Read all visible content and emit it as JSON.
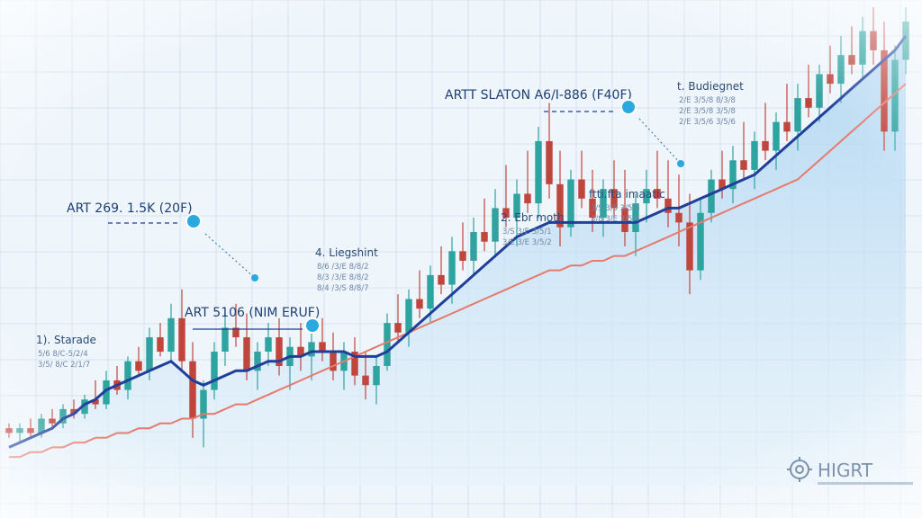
{
  "chart_data": {
    "type": "candlestick",
    "title": "",
    "xlabel": "",
    "ylabel": "",
    "grid": true,
    "legend": "none",
    "ylim": [
      0,
      100
    ],
    "candles": [
      [
        12,
        13,
        10,
        11
      ],
      [
        11,
        13,
        9,
        12
      ],
      [
        12,
        14,
        10,
        11
      ],
      [
        11,
        15,
        10,
        14
      ],
      [
        14,
        16,
        12,
        13
      ],
      [
        13,
        17,
        12,
        16
      ],
      [
        16,
        18,
        14,
        15
      ],
      [
        15,
        19,
        14,
        18
      ],
      [
        18,
        22,
        16,
        17
      ],
      [
        17,
        24,
        16,
        22
      ],
      [
        22,
        25,
        19,
        20
      ],
      [
        20,
        27,
        18,
        26
      ],
      [
        26,
        29,
        23,
        24
      ],
      [
        24,
        33,
        22,
        31
      ],
      [
        31,
        34,
        27,
        28
      ],
      [
        28,
        38,
        26,
        35
      ],
      [
        35,
        41,
        24,
        26
      ],
      [
        26,
        30,
        10,
        14
      ],
      [
        14,
        22,
        8,
        20
      ],
      [
        20,
        30,
        18,
        28
      ],
      [
        28,
        36,
        25,
        33
      ],
      [
        33,
        38,
        29,
        31
      ],
      [
        31,
        36,
        22,
        24
      ],
      [
        24,
        30,
        20,
        28
      ],
      [
        28,
        34,
        25,
        31
      ],
      [
        31,
        35,
        23,
        25
      ],
      [
        25,
        31,
        20,
        29
      ],
      [
        29,
        34,
        24,
        27
      ],
      [
        27,
        33,
        22,
        30
      ],
      [
        30,
        35,
        26,
        28
      ],
      [
        28,
        32,
        22,
        24
      ],
      [
        24,
        30,
        20,
        28
      ],
      [
        28,
        31,
        21,
        23
      ],
      [
        23,
        28,
        18,
        21
      ],
      [
        21,
        27,
        17,
        25
      ],
      [
        25,
        36,
        24,
        34
      ],
      [
        34,
        40,
        30,
        32
      ],
      [
        32,
        41,
        29,
        39
      ],
      [
        39,
        45,
        35,
        37
      ],
      [
        37,
        46,
        34,
        44
      ],
      [
        44,
        50,
        40,
        42
      ],
      [
        42,
        52,
        38,
        49
      ],
      [
        49,
        55,
        45,
        47
      ],
      [
        47,
        56,
        44,
        53
      ],
      [
        53,
        60,
        49,
        51
      ],
      [
        51,
        62,
        48,
        58
      ],
      [
        58,
        67,
        54,
        56
      ],
      [
        56,
        64,
        50,
        61
      ],
      [
        61,
        70,
        57,
        59
      ],
      [
        59,
        75,
        56,
        72
      ],
      [
        72,
        80,
        60,
        63
      ],
      [
        63,
        70,
        50,
        54
      ],
      [
        54,
        66,
        52,
        64
      ],
      [
        64,
        70,
        58,
        60
      ],
      [
        60,
        66,
        53,
        56
      ],
      [
        56,
        64,
        52,
        62
      ],
      [
        62,
        68,
        56,
        58
      ],
      [
        58,
        66,
        50,
        53
      ],
      [
        53,
        61,
        48,
        59
      ],
      [
        59,
        66,
        55,
        62
      ],
      [
        62,
        70,
        58,
        60
      ],
      [
        60,
        68,
        54,
        57
      ],
      [
        57,
        65,
        50,
        55
      ],
      [
        55,
        61,
        40,
        45
      ],
      [
        45,
        60,
        43,
        57
      ],
      [
        57,
        66,
        55,
        64
      ],
      [
        64,
        70,
        60,
        62
      ],
      [
        62,
        71,
        59,
        68
      ],
      [
        68,
        76,
        64,
        66
      ],
      [
        66,
        74,
        62,
        72
      ],
      [
        72,
        80,
        68,
        70
      ],
      [
        70,
        78,
        66,
        76
      ],
      [
        76,
        84,
        72,
        74
      ],
      [
        74,
        84,
        70,
        81
      ],
      [
        81,
        88,
        77,
        79
      ],
      [
        79,
        88,
        76,
        86
      ],
      [
        86,
        92,
        82,
        84
      ],
      [
        84,
        94,
        80,
        90
      ],
      [
        90,
        96,
        86,
        88
      ],
      [
        88,
        98,
        85,
        95
      ],
      [
        95,
        100,
        88,
        91
      ],
      [
        91,
        97,
        70,
        74
      ],
      [
        74,
        92,
        70,
        89
      ],
      [
        89,
        100,
        86,
        97
      ]
    ],
    "series": [
      {
        "type": "line",
        "values": [
          8,
          9,
          10,
          11,
          12,
          14,
          15,
          17,
          18,
          20,
          21,
          22,
          23,
          24,
          25,
          26,
          24,
          22,
          21,
          22,
          23,
          24,
          24,
          25,
          26,
          26,
          27,
          27,
          28,
          28,
          28,
          28,
          27,
          27,
          27,
          28,
          30,
          32,
          34,
          36,
          38,
          40,
          42,
          44,
          46,
          48,
          50,
          52,
          53,
          54,
          55,
          55,
          55,
          55,
          55,
          55,
          55,
          55,
          55,
          56,
          57,
          58,
          58,
          59,
          60,
          61,
          62,
          63,
          64,
          65,
          67,
          69,
          71,
          73,
          75,
          77,
          79,
          81,
          83,
          85,
          87,
          89,
          91,
          94
        ]
      },
      {
        "type": "line",
        "values": [
          6,
          6,
          7,
          7,
          8,
          8,
          9,
          9,
          10,
          10,
          11,
          11,
          12,
          12,
          13,
          13,
          14,
          14,
          15,
          15,
          16,
          17,
          17,
          18,
          19,
          20,
          21,
          22,
          23,
          24,
          25,
          26,
          27,
          28,
          29,
          30,
          31,
          32,
          33,
          34,
          35,
          36,
          37,
          38,
          39,
          40,
          41,
          42,
          43,
          44,
          45,
          45,
          46,
          46,
          47,
          47,
          48,
          48,
          49,
          50,
          51,
          52,
          53,
          54,
          55,
          56,
          57,
          58,
          59,
          60,
          61,
          62,
          63,
          64,
          66,
          68,
          70,
          72,
          74,
          76,
          78,
          80,
          82,
          84
        ]
      }
    ],
    "annotations": [
      {
        "label": "ART 269. 1.5K (20F)",
        "x": 12,
        "y": 48
      },
      {
        "label": "ART 5106 (NIM ERUF)",
        "x": 38,
        "y": 35
      },
      {
        "label": "ARTT SLATON A6/I-886 (F40F)",
        "x": 72,
        "y": 82
      }
    ],
    "callouts": [
      {
        "title": "1). Starade",
        "lines": [
          "5/6 8/C-5/2/4",
          "3/5/ 8/C 2/1/7"
        ]
      },
      {
        "title": "4. Liegshint",
        "lines": [
          "8/6 /3/E 8/8/2",
          "8/3 /3/E 8/8/2",
          "8/4 /3/S 8/8/7"
        ]
      },
      {
        "title": "2. Ebr moth",
        "lines": [
          "3/S 3/E 3/5/1",
          "3/E 3/E 3/5/2"
        ]
      },
      {
        "title": "ftti.fta imaatic",
        "lines": [
          "3/S 3/5 3/5/6",
          "3/8 3/E 3/5/4"
        ]
      },
      {
        "title": "t. Budiegnet",
        "lines": [
          "2/E 3/5/8 8/3/8",
          "2/E 3/5/8 3/5/8",
          "2/E 3/5/6 3/5/6"
        ]
      }
    ],
    "colors": {
      "up": "#2fa3a0",
      "down": "#c0453d",
      "line1": "#1f3f9a",
      "line2": "#e57a6d",
      "area": "#bcdcf3",
      "grid": "#d5e3f0",
      "accent": "#29a9e0"
    }
  },
  "watermark": {
    "text": "HIGRT",
    "icon": "gear-icon"
  }
}
